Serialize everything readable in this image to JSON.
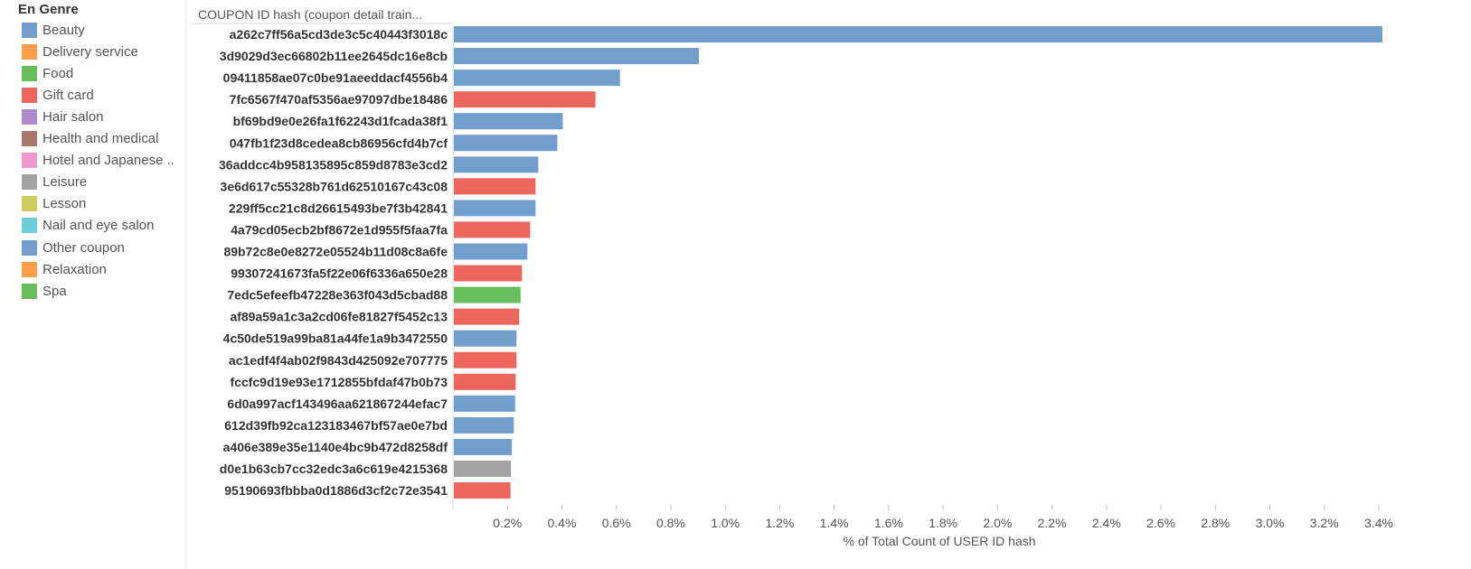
{
  "legend": {
    "title": "En Genre",
    "items": [
      {
        "label": "Beauty",
        "color": "#729ece"
      },
      {
        "label": "Delivery service",
        "color": "#ff9e4a"
      },
      {
        "label": "Food",
        "color": "#67bf5c"
      },
      {
        "label": "Gift card",
        "color": "#ed665d"
      },
      {
        "label": "Hair salon",
        "color": "#ad8bc9"
      },
      {
        "label": "Health and medical",
        "color": "#a8786e"
      },
      {
        "label": "Hotel and Japanese ..",
        "color": "#ed97ca"
      },
      {
        "label": "Leisure",
        "color": "#a2a2a2"
      },
      {
        "label": "Lesson",
        "color": "#cdcc5d"
      },
      {
        "label": "Nail and eye salon",
        "color": "#6dccda"
      },
      {
        "label": "Other coupon",
        "color": "#729ece"
      },
      {
        "label": "Relaxation",
        "color": "#ff9e4a"
      },
      {
        "label": "Spa",
        "color": "#67bf5c"
      }
    ]
  },
  "chart_data": {
    "type": "bar",
    "orientation": "horizontal",
    "row_header": "COUPON ID hash (coupon detail train...",
    "xlabel": "% of Total Count of USER ID hash",
    "ylabel": "",
    "xlim": [
      0,
      3.45
    ],
    "x_ticks": [
      0.2,
      0.4,
      0.6,
      0.8,
      1.0,
      1.2,
      1.4,
      1.6,
      1.8,
      2.0,
      2.2,
      2.4,
      2.6,
      2.8,
      3.0,
      3.2,
      3.4
    ],
    "x_tick_labels": [
      "0.2%",
      "0.4%",
      "0.6%",
      "0.8%",
      "1.0%",
      "1.2%",
      "1.4%",
      "1.6%",
      "1.8%",
      "2.0%",
      "2.2%",
      "2.4%",
      "2.6%",
      "2.8%",
      "3.0%",
      "3.2%",
      "3.4%"
    ],
    "grid": false,
    "legend_position": "left",
    "categories": [
      "a262c7ff56a5cd3de3c5c40443f3018c",
      "3d9029d3ec66802b11ee2645dc16e8cb",
      "09411858ae07c0be91aeeddacf4556b4",
      "7fc6567f470af5356ae97097dbe18486",
      "bf69bd9e0e26fa1f62243d1fcada38f1",
      "047fb1f23d8cedea8cb86956cfd4b7cf",
      "36addcc4b958135895c859d8783e3cd2",
      "3e6d617c55328b761d62510167c43c08",
      "229ff5cc21c8d26615493be7f3b42841",
      "4a79cd05ecb2bf8672e1d955f5faa7fa",
      "89b72c8e0e8272e05524b11d08c8a6fe",
      "99307241673fa5f22e06f6336a650e28",
      "7edc5efeefb47228e363f043d5cbad88",
      "af89a59a1c3a2cd06fe81827f5452c13",
      "4c50de519a99ba81a44fe1a9b3472550",
      "ac1edf4f4ab02f9843d425092e707775",
      "fccfc9d19e93e1712855bfdaf47b0b73",
      "6d0a997acf143496aa621867244efac7",
      "612d39fb92ca123183467bf57ae0e7bd",
      "a406e389e35e1140e4bc9b472d8258df",
      "d0e1b63cb7cc32edc3a6c619e4215368",
      "95190693fbbba0d1886d3cf2c72e3541"
    ],
    "values": [
      3.41,
      0.9,
      0.61,
      0.52,
      0.4,
      0.38,
      0.31,
      0.3,
      0.3,
      0.28,
      0.27,
      0.25,
      0.245,
      0.24,
      0.23,
      0.23,
      0.227,
      0.225,
      0.22,
      0.213,
      0.21,
      0.208
    ],
    "genres": [
      "Beauty",
      "Beauty",
      "Beauty",
      "Gift card",
      "Beauty",
      "Beauty",
      "Beauty",
      "Gift card",
      "Beauty",
      "Gift card",
      "Beauty",
      "Gift card",
      "Food",
      "Gift card",
      "Beauty",
      "Gift card",
      "Gift card",
      "Beauty",
      "Beauty",
      "Beauty",
      "Leisure",
      "Gift card"
    ]
  }
}
